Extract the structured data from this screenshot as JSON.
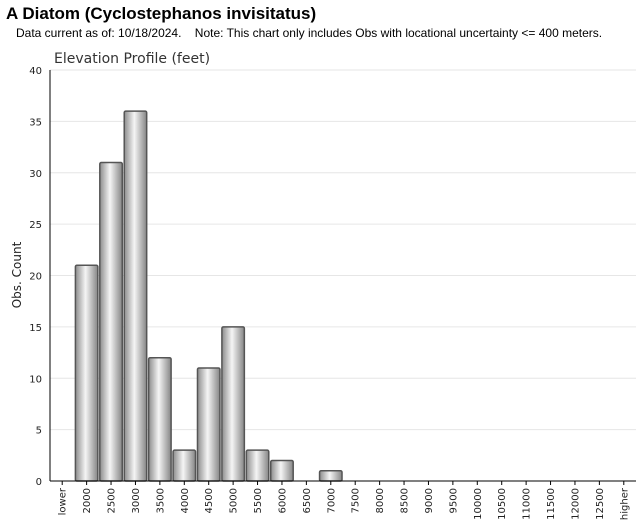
{
  "header": {
    "title": "A Diatom   (Cyclostephanos invisitatus)",
    "note": "Data current as of: 10/18/2024.    Note: This chart only includes Obs with locational uncertainty <= 400 meters."
  },
  "chart_data": {
    "type": "bar",
    "title": "Elevation Profile (feet)",
    "xlabel": "",
    "ylabel": "Obs. Count",
    "ylim": [
      0,
      40
    ],
    "yticks": [
      0,
      5,
      10,
      15,
      20,
      25,
      30,
      35,
      40
    ],
    "grid": true,
    "categories": [
      "lower",
      "2000",
      "2500",
      "3000",
      "3500",
      "4000",
      "4500",
      "5000",
      "5500",
      "6000",
      "6500",
      "7000",
      "7500",
      "8000",
      "8500",
      "9000",
      "9500",
      "10000",
      "10500",
      "11000",
      "11500",
      "12000",
      "12500",
      "higher"
    ],
    "values": [
      0,
      21,
      31,
      36,
      12,
      3,
      11,
      15,
      3,
      2,
      0,
      1,
      0,
      0,
      0,
      0,
      0,
      0,
      0,
      0,
      0,
      0,
      0,
      0
    ]
  },
  "colors": {
    "bar_light": "#f4f4f4",
    "bar_dark": "#8a8a8a",
    "bar_outline": "#555555",
    "grid": "#e6e6e6",
    "axis": "#000000"
  }
}
